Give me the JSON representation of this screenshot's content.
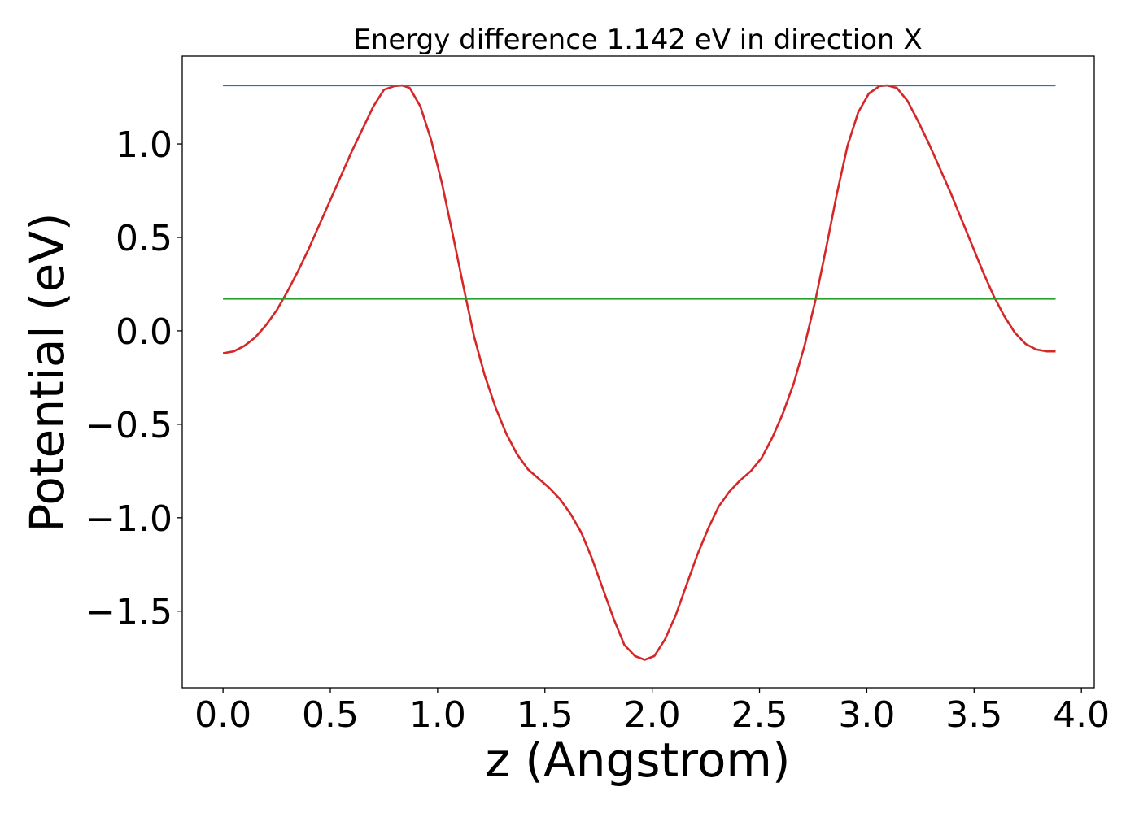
{
  "chart_data": {
    "type": "line",
    "title": "Energy difference 1.142 eV in direction X",
    "xlabel": "z (Angstrom)",
    "ylabel": "Potential (eV)",
    "xlim": [
      -0.19,
      4.06
    ],
    "ylim": [
      -1.91,
      1.47
    ],
    "xticks": [
      0.0,
      0.5,
      1.0,
      1.5,
      2.0,
      2.5,
      3.0,
      3.5,
      4.0
    ],
    "xtick_labels": [
      "0.0",
      "0.5",
      "1.0",
      "1.5",
      "2.0",
      "2.5",
      "3.0",
      "3.5",
      "4.0"
    ],
    "yticks": [
      -1.5,
      -1.0,
      -0.5,
      0.0,
      0.5,
      1.0
    ],
    "ytick_labels": [
      "−1.5",
      "−1.0",
      "−0.5",
      "0.0",
      "0.5",
      "1.0"
    ],
    "grid": false,
    "series": [
      {
        "color": "#d62728",
        "x": [
          0.0,
          0.05,
          0.1,
          0.15,
          0.2,
          0.25,
          0.3,
          0.35,
          0.4,
          0.45,
          0.5,
          0.55,
          0.6,
          0.65,
          0.7,
          0.75,
          0.8,
          0.835,
          0.87,
          0.92,
          0.97,
          1.02,
          1.07,
          1.12,
          1.17,
          1.22,
          1.27,
          1.32,
          1.37,
          1.42,
          1.47,
          1.52,
          1.57,
          1.62,
          1.67,
          1.72,
          1.77,
          1.82,
          1.87,
          1.92,
          1.965,
          2.01,
          2.06,
          2.11,
          2.16,
          2.21,
          2.26,
          2.31,
          2.36,
          2.41,
          2.46,
          2.51,
          2.56,
          2.61,
          2.66,
          2.71,
          2.76,
          2.81,
          2.86,
          2.91,
          2.96,
          3.01,
          3.06,
          3.095,
          3.14,
          3.19,
          3.24,
          3.29,
          3.34,
          3.39,
          3.44,
          3.49,
          3.54,
          3.59,
          3.64,
          3.69,
          3.74,
          3.79,
          3.84,
          3.88
        ],
        "values": [
          -0.12,
          -0.11,
          -0.08,
          -0.035,
          0.03,
          0.11,
          0.21,
          0.32,
          0.44,
          0.57,
          0.7,
          0.83,
          0.96,
          1.08,
          1.2,
          1.29,
          1.31,
          1.313,
          1.3,
          1.2,
          1.02,
          0.79,
          0.52,
          0.24,
          -0.03,
          -0.24,
          -0.41,
          -0.55,
          -0.66,
          -0.74,
          -0.79,
          -0.84,
          -0.9,
          -0.98,
          -1.08,
          -1.22,
          -1.38,
          -1.54,
          -1.68,
          -1.74,
          -1.76,
          -1.74,
          -1.65,
          -1.52,
          -1.36,
          -1.2,
          -1.06,
          -0.94,
          -0.86,
          -0.8,
          -0.75,
          -0.68,
          -0.57,
          -0.44,
          -0.28,
          -0.08,
          0.16,
          0.44,
          0.73,
          0.99,
          1.17,
          1.27,
          1.31,
          1.313,
          1.3,
          1.23,
          1.12,
          1.0,
          0.87,
          0.74,
          0.6,
          0.46,
          0.32,
          0.19,
          0.08,
          -0.01,
          -0.07,
          -0.1,
          -0.11,
          -0.11
        ]
      },
      {
        "color": "#1f77b4",
        "x": [
          0.0,
          3.88
        ],
        "values": [
          1.313,
          1.313
        ]
      },
      {
        "color": "#2ca02c",
        "x": [
          0.0,
          3.88
        ],
        "values": [
          0.171,
          0.171
        ]
      }
    ]
  }
}
